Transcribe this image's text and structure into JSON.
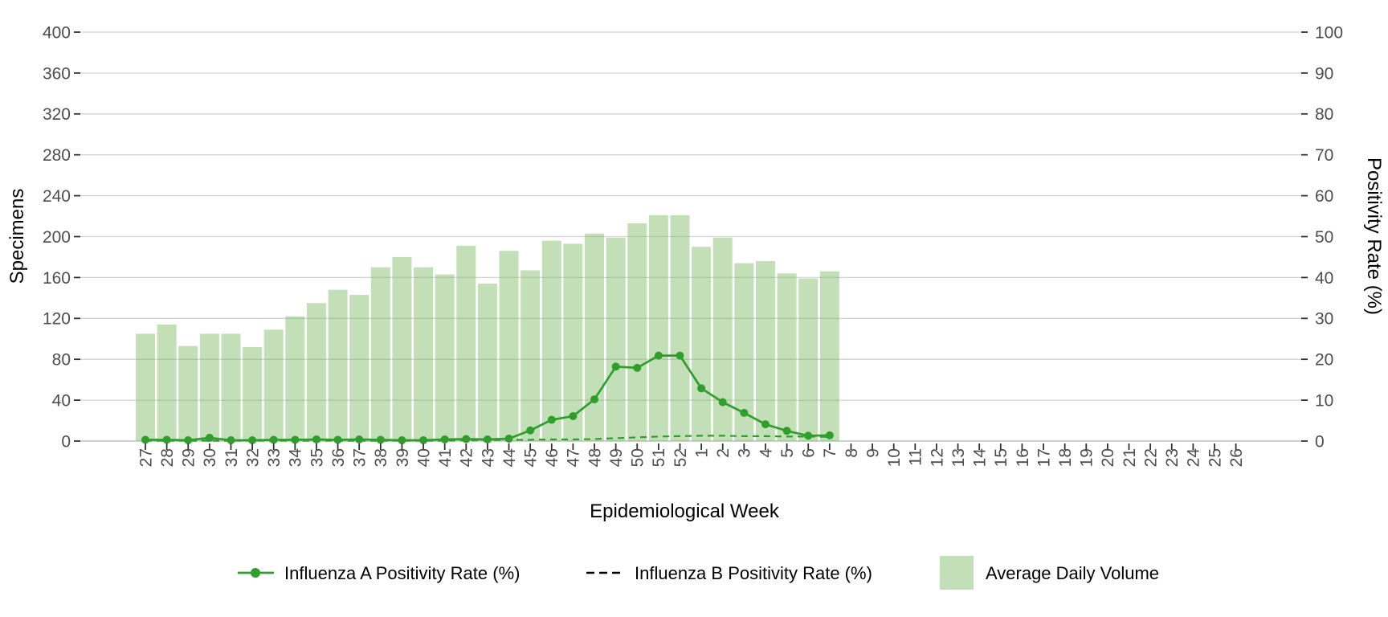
{
  "chart_data": {
    "type": "bar+line combo (dual axis)",
    "x_axis": {
      "label": "Epidemiological Week",
      "categories": [
        "27",
        "28",
        "29",
        "30",
        "31",
        "32",
        "33",
        "34",
        "35",
        "36",
        "37",
        "38",
        "39",
        "40",
        "41",
        "42",
        "43",
        "44",
        "45",
        "46",
        "47",
        "48",
        "49",
        "50",
        "51",
        "52",
        "1",
        "2",
        "3",
        "4",
        "5",
        "6",
        "7",
        "8",
        "9",
        "10",
        "11",
        "12",
        "13",
        "14",
        "15",
        "16",
        "17",
        "18",
        "19",
        "20",
        "21",
        "22",
        "23",
        "24",
        "25",
        "26"
      ]
    },
    "left_axis": {
      "label": "Specimens",
      "range": [
        0,
        400
      ],
      "tick_labels": [
        "0",
        "40",
        "80",
        "120",
        "160",
        "200",
        "240",
        "280",
        "320",
        "360",
        "400"
      ],
      "tick_values": [
        0,
        40,
        80,
        120,
        160,
        200,
        240,
        280,
        320,
        360,
        400
      ]
    },
    "right_axis": {
      "label": "Positivity Rate (%)",
      "range": [
        0,
        100
      ],
      "tick_labels": [
        "0",
        "10",
        "20",
        "30",
        "40",
        "50",
        "60",
        "70",
        "80",
        "90",
        "100"
      ],
      "tick_values": [
        0,
        10,
        20,
        30,
        40,
        50,
        60,
        70,
        80,
        90,
        100
      ]
    },
    "series": [
      {
        "name": "Average Daily Volume",
        "type": "bar",
        "axis": "left",
        "values": [
          105,
          114,
          93,
          105,
          105,
          92,
          109,
          122,
          135,
          148,
          143,
          170,
          180,
          170,
          163,
          191,
          154,
          186,
          167,
          196,
          193,
          203,
          199,
          213,
          221,
          221,
          190,
          199,
          174,
          176,
          164,
          159,
          166
        ]
      },
      {
        "name": "Influenza A Positivity Rate (%)",
        "type": "line-solid-markers",
        "axis": "right",
        "values": [
          0.3,
          0.3,
          0.2,
          0.8,
          0.2,
          0.2,
          0.3,
          0.3,
          0.4,
          0.3,
          0.4,
          0.3,
          0.2,
          0.2,
          0.4,
          0.5,
          0.4,
          0.6,
          2.6,
          5.2,
          6.1,
          10.2,
          18.2,
          17.9,
          20.9,
          20.9,
          12.9,
          9.5,
          6.9,
          4.1,
          2.5,
          1.3,
          1.4
        ]
      },
      {
        "name": "Influenza B Positivity Rate (%)",
        "type": "line-dashed",
        "axis": "right",
        "values": [
          0.1,
          0.1,
          0.1,
          0.1,
          0.1,
          0.1,
          0.1,
          0.1,
          0.1,
          0.1,
          0.1,
          0.1,
          0.1,
          0.1,
          0.1,
          0.2,
          0.2,
          0.3,
          0.3,
          0.4,
          0.4,
          0.5,
          0.7,
          0.9,
          1.1,
          1.2,
          1.3,
          1.3,
          1.2,
          1.2,
          1.1,
          1.1,
          1.0
        ]
      }
    ],
    "grid": "horizontal only",
    "legend_position": "bottom"
  },
  "colors": {
    "line_green": "#2f9e2c",
    "bar_green": "#79b962",
    "bar_opacity": "0.45",
    "legend_b_key": "#000000",
    "gridline": "#d2d2d2",
    "baseline": "#cfcfcf",
    "tick_mark": "#333333",
    "tick_label": "#4d4d4d"
  },
  "legend": {
    "items": [
      {
        "label": "Influenza A Positivity Rate (%)",
        "key": "green-line-with-dot"
      },
      {
        "label": "Influenza B Positivity Rate (%)",
        "key": "black-dashed-line"
      },
      {
        "label": "Average Daily Volume",
        "key": "light-green-square"
      }
    ]
  }
}
